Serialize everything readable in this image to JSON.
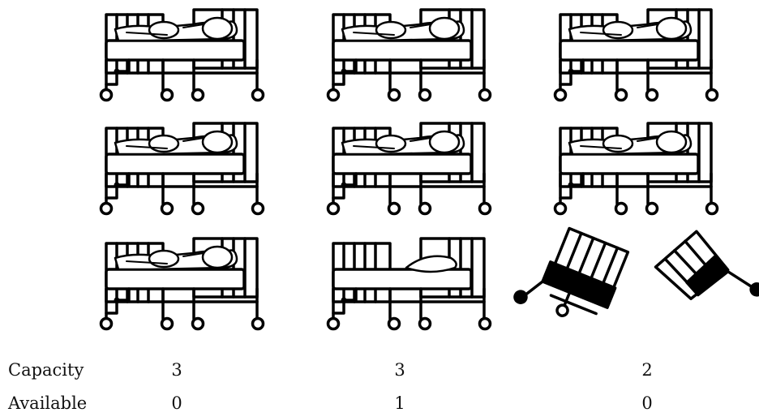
{
  "rows": {
    "capacity_label": "Capacity",
    "available_label": "Available"
  },
  "wards": [
    {
      "capacity": "3",
      "available": "0"
    },
    {
      "capacity": "3",
      "available": "1"
    },
    {
      "capacity": "2",
      "available": "0"
    }
  ],
  "grid": {
    "column_0": [
      "occupied-bed-icon",
      "occupied-bed-icon",
      "occupied-bed-icon"
    ],
    "column_1": [
      "occupied-bed-icon",
      "occupied-bed-icon",
      "empty-bed-icon"
    ],
    "column_2": [
      "occupied-bed-icon",
      "occupied-bed-icon",
      "broken-bed-icon"
    ]
  }
}
